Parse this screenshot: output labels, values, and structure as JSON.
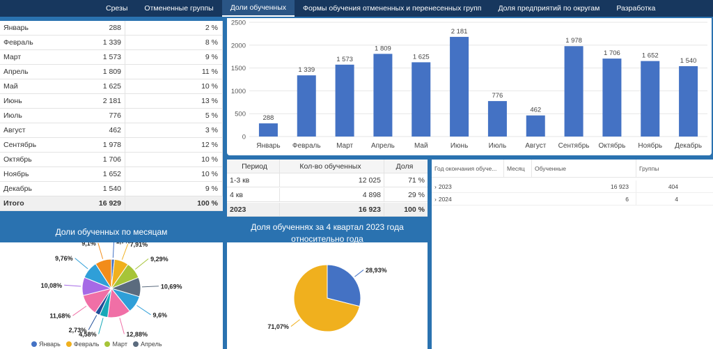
{
  "nav": {
    "tabs": [
      {
        "label": "Срезы"
      },
      {
        "label": "Отмененные группы"
      },
      {
        "label": "Доли обученных"
      },
      {
        "label": "Формы обучения отмененных и перенесенных групп"
      },
      {
        "label": "Доля предприятий по округам"
      },
      {
        "label": "Разработка"
      }
    ],
    "active_index": 2
  },
  "month_table": {
    "rows": [
      {
        "month": "Январь",
        "count": "288",
        "share": "2 %"
      },
      {
        "month": "Февраль",
        "count": "1 339",
        "share": "8 %"
      },
      {
        "month": "Март",
        "count": "1 573",
        "share": "9 %"
      },
      {
        "month": "Апрель",
        "count": "1 809",
        "share": "11 %"
      },
      {
        "month": "Май",
        "count": "1 625",
        "share": "10 %"
      },
      {
        "month": "Июнь",
        "count": "2 181",
        "share": "13 %"
      },
      {
        "month": "Июль",
        "count": "776",
        "share": "5 %"
      },
      {
        "month": "Август",
        "count": "462",
        "share": "3 %"
      },
      {
        "month": "Сентябрь",
        "count": "1 978",
        "share": "12 %"
      },
      {
        "month": "Октябрь",
        "count": "1 706",
        "share": "10 %"
      },
      {
        "month": "Ноябрь",
        "count": "1 652",
        "share": "10 %"
      },
      {
        "month": "Декабрь",
        "count": "1 540",
        "share": "9 %"
      }
    ],
    "total": {
      "label": "Итого",
      "count": "16 929",
      "share": "100 %"
    }
  },
  "chart_data": [
    {
      "type": "bar",
      "categories": [
        "Январь",
        "Февраль",
        "Март",
        "Апрель",
        "Май",
        "Июнь",
        "Июль",
        "Август",
        "Сентябрь",
        "Октябрь",
        "Ноябрь",
        "Декабрь"
      ],
      "values": [
        288,
        1339,
        1573,
        1809,
        1625,
        2181,
        776,
        462,
        1978,
        1706,
        1652,
        1540
      ],
      "data_labels": [
        "288",
        "1 339",
        "1 573",
        "1 809",
        "1 625",
        "2 181",
        "776",
        "462",
        "1 978",
        "1 706",
        "1 652",
        "1 540"
      ],
      "yticks": [
        "0",
        "500",
        "1000",
        "1500",
        "2000",
        "2500"
      ],
      "ylim": [
        0,
        2500
      ],
      "grid": true,
      "bar_color": "#4472c4"
    },
    {
      "type": "pie",
      "title": "Доли обученных по месяцам",
      "categories": [
        "Январь",
        "Февраль",
        "Март",
        "Апрель",
        "Май",
        "Июнь",
        "Июль",
        "Август",
        "Сентябрь",
        "Октябрь",
        "Ноябрь",
        "Декабрь"
      ],
      "values": [
        1.7,
        7.91,
        9.29,
        10.69,
        9.6,
        12.88,
        4.58,
        2.73,
        11.68,
        10.08,
        9.76,
        9.1
      ],
      "labels": [
        "1,7%",
        "7,91%",
        "9,29%",
        "10,69%",
        "9,6%",
        "12,88%",
        "4,58%",
        "2,73%",
        "11,68%",
        "10,08%",
        "9,76%",
        "9,1%"
      ],
      "colors": [
        "#4472c4",
        "#f0b01e",
        "#a6c438",
        "#5b6b7e",
        "#2f9fd8",
        "#f06fa6",
        "#17a8b8",
        "#1f4e99",
        "#f06fa6",
        "#a66ae6",
        "#2f9fd8",
        "#f28c1a"
      ],
      "legend": [
        "Январь",
        "Февраль",
        "Март",
        "Апрель"
      ],
      "legend_placement": "bottom"
    },
    {
      "type": "pie",
      "title": "Доля обученнях за 4 квартал 2023 года относительно года",
      "values": [
        28.93,
        71.07
      ],
      "labels": [
        "28,93%",
        "71,07%"
      ],
      "colors": [
        "#4472c4",
        "#f0b01e"
      ]
    }
  ],
  "period_table": {
    "headers": [
      "Период",
      "Кол-во обученных",
      "Доля"
    ],
    "rows": [
      {
        "period": "1-3 кв",
        "count": "12 025",
        "share": "71 %"
      },
      {
        "period": "4 кв",
        "count": "4 898",
        "share": "29 %"
      }
    ],
    "total": {
      "period": "2023",
      "count": "16 923",
      "share": "100 %"
    }
  },
  "pivot": {
    "headers": [
      "Год окончания обуче...",
      "Месяц",
      "Обученные",
      "Группы"
    ],
    "rows": [
      {
        "year": "2023",
        "trained": "16 923",
        "groups": "404"
      },
      {
        "year": "2024",
        "trained": "6",
        "groups": "4"
      }
    ],
    "expand_glyph": "›"
  }
}
